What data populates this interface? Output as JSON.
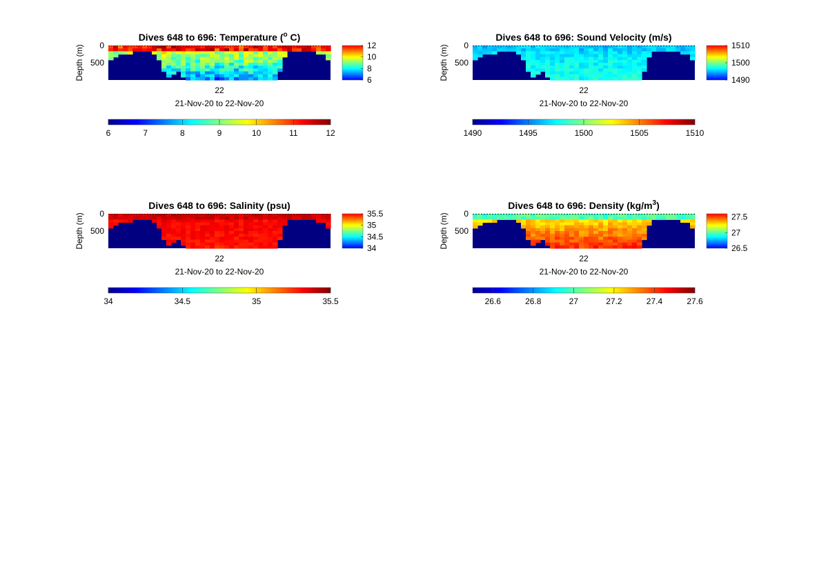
{
  "chart_data": [
    {
      "type": "heatmap",
      "title": "Dives 648 to 696: Temperature (",
      "title_sup": "o",
      "title_suffix": " C)",
      "ylabel": "Depth (m)",
      "yticks": [
        "0",
        "500"
      ],
      "ylim": [
        0,
        1000
      ],
      "xtick": "22",
      "xlabel": "21-Nov-20 to 22-Nov-20",
      "clim": [
        6,
        12
      ],
      "side_colorbar_ticks": [
        "12",
        "10",
        "8",
        "6"
      ],
      "bottom_colorbar_ticks": [
        "6",
        "7",
        "8",
        "9",
        "10",
        "11",
        "12"
      ],
      "values": {
        "surface": 11.2,
        "mid": 9.5,
        "deep": 7.6,
        "variation": 0.6
      },
      "background_color": "#000080"
    },
    {
      "type": "heatmap",
      "title": "Dives 648 to 696: Sound Velocity (m/s)",
      "title_sup": "",
      "title_suffix": "",
      "ylabel": "Depth (m)",
      "yticks": [
        "0",
        "500"
      ],
      "ylim": [
        0,
        1000
      ],
      "xtick": "22",
      "xlabel": "21-Nov-20 to 22-Nov-20",
      "clim": [
        1490,
        1510
      ],
      "side_colorbar_ticks": [
        "1510",
        "1500",
        "1490"
      ],
      "bottom_colorbar_ticks": [
        "1490",
        "1495",
        "1500",
        "1505",
        "1510"
      ],
      "values": {
        "surface": 1496.5,
        "mid": 1497.0,
        "deep": 1498.0,
        "variation": 0.8
      },
      "background_color": "#000080"
    },
    {
      "type": "heatmap",
      "title": "Dives 648 to 696: Salinity (psu)",
      "title_sup": "",
      "title_suffix": "",
      "ylabel": "Depth (m)",
      "yticks": [
        "0",
        "500"
      ],
      "ylim": [
        0,
        1000
      ],
      "xtick": "22",
      "xlabel": "21-Nov-20 to 22-Nov-20",
      "clim": [
        34,
        35.5
      ],
      "side_colorbar_ticks": [
        "35.5",
        "35",
        "34.5",
        "34"
      ],
      "bottom_colorbar_ticks": [
        "34",
        "34.5",
        "35",
        "35.5"
      ],
      "values": {
        "surface": 35.38,
        "mid": 35.32,
        "deep": 35.28,
        "variation": 0.04
      },
      "background_color": "#000080"
    },
    {
      "type": "heatmap",
      "title": "Dives 648 to 696: Density (kg/m",
      "title_sup": "3",
      "title_suffix": ")",
      "ylabel": "Depth (m)",
      "yticks": [
        "0",
        "500"
      ],
      "ylim": [
        0,
        1000
      ],
      "xtick": "22",
      "xlabel": "21-Nov-20 to 22-Nov-20",
      "clim": [
        26.5,
        27.6
      ],
      "side_colorbar_ticks": [
        "27.5",
        "27",
        "26.5"
      ],
      "side_colorbar_clim": [
        26.5,
        27.6
      ],
      "bottom_colorbar_ticks": [
        "26.6",
        "26.8",
        "27",
        "27.2",
        "27.4",
        "27.6"
      ],
      "values": {
        "surface": 27.0,
        "mid": 27.22,
        "deep": 27.42,
        "variation": 0.05
      },
      "background_color": "#000080"
    }
  ]
}
